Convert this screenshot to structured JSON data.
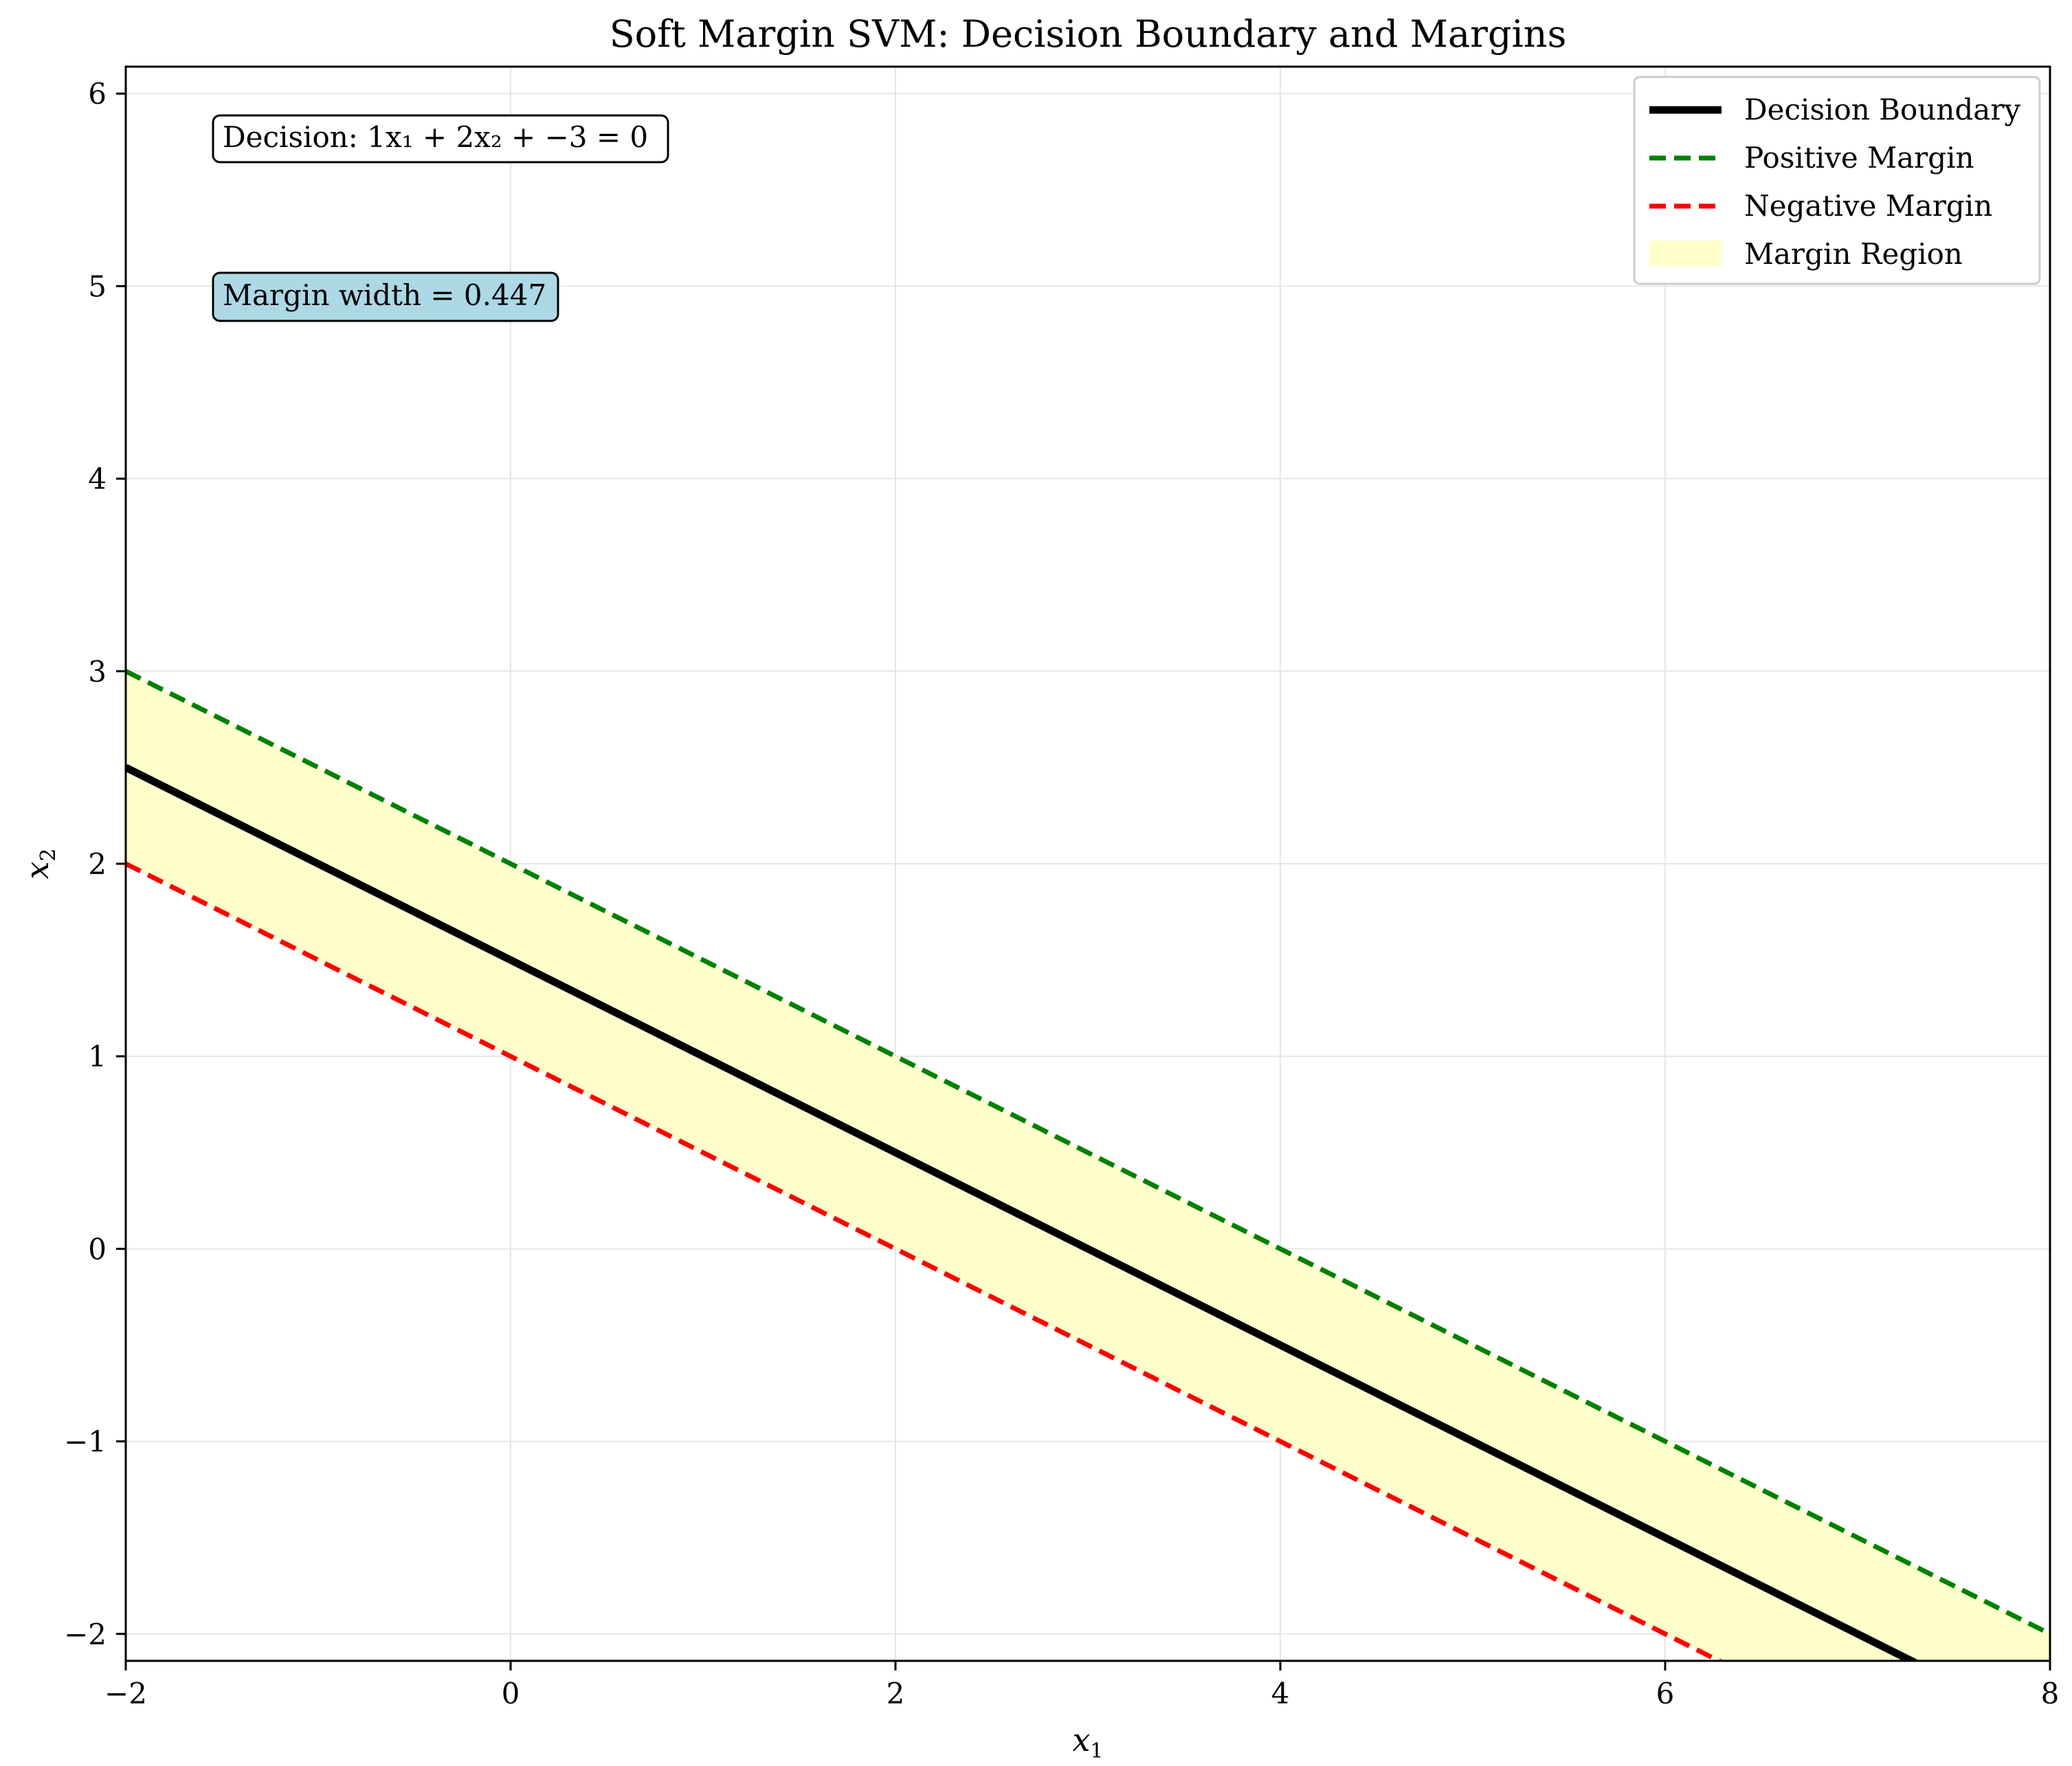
{
  "chart_data": {
    "type": "line",
    "title": "Soft Margin SVM: Decision Boundary and Margins",
    "xlabel": "x",
    "xlabel_sub": "1",
    "ylabel": "x",
    "ylabel_sub": "2",
    "xlim": [
      -2,
      8
    ],
    "ylim": [
      -2.14,
      6.14
    ],
    "xticks": [
      -2,
      0,
      2,
      4,
      6,
      8
    ],
    "yticks": [
      -2,
      -1,
      0,
      1,
      2,
      3,
      4,
      5,
      6
    ],
    "xtick_labels": [
      "−2",
      "0",
      "2",
      "4",
      "6",
      "8"
    ],
    "ytick_labels": [
      "−2",
      "−1",
      "0",
      "1",
      "2",
      "3",
      "4",
      "5",
      "6"
    ],
    "grid": true,
    "legend_position": "top-right",
    "series": [
      {
        "name": "Decision Boundary",
        "style": "solid",
        "color": "#000000",
        "x": [
          -2,
          8
        ],
        "y": [
          2.5,
          -2.5
        ]
      },
      {
        "name": "Positive Margin",
        "style": "dashed",
        "color": "#008000",
        "x": [
          -2,
          8
        ],
        "y": [
          3.0,
          -2.0
        ]
      },
      {
        "name": "Negative Margin",
        "style": "dashed",
        "color": "#ff0000",
        "x": [
          -2,
          8
        ],
        "y": [
          2.0,
          -3.0
        ]
      },
      {
        "name": "Margin Region",
        "style": "fill",
        "color": "#ffffcc",
        "x": [
          -2,
          8
        ],
        "y_low": [
          2.0,
          -3.0
        ],
        "y_high": [
          3.0,
          -2.0
        ]
      }
    ],
    "annotations": [
      {
        "label": "Decision: 1x₁ + 2x₂ + −3 = 0",
        "background": "#ffffff"
      },
      {
        "label": "Margin width = 0.447",
        "background": "#add8e6"
      }
    ]
  }
}
